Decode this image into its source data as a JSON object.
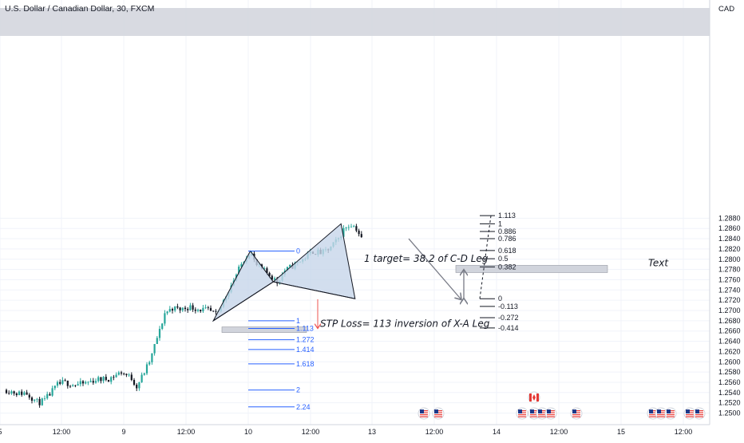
{
  "chart_data": {
    "type": "candlestick",
    "title": "U.S. Dollar / Canadian Dollar, 30, FXCM",
    "currency": "CAD",
    "ylim": [
      1.2495,
      1.2925
    ],
    "y_ticks": [
      "1.2880",
      "1.2860",
      "1.2840",
      "1.2820",
      "1.2800",
      "1.2780",
      "1.2760",
      "1.2740",
      "1.2720",
      "1.2700",
      "1.2680",
      "1.2660",
      "1.2640",
      "1.2620",
      "1.2600",
      "1.2580",
      "1.2560",
      "1.2540",
      "1.2520",
      "1.2500"
    ],
    "x_ticks": [
      "5",
      "12:00",
      "9",
      "12:00",
      "10",
      "12:00",
      "13",
      "12:00",
      "14",
      "12:00",
      "15",
      "12:00"
    ],
    "grid": true,
    "colors": {
      "bull": "#26a69a",
      "bear": "#131722",
      "fib_left": "#2962ff",
      "fib_right": "#131722",
      "pattern_fill": "#c7d6ea",
      "stop_arrow": "#ef5350",
      "band": "#d1d4dc"
    },
    "price_path": [
      [
        0,
        1.2545
      ],
      [
        1.0,
        1.2538
      ],
      [
        1.5,
        1.254
      ],
      [
        2.5,
        1.252
      ],
      [
        3.0,
        1.2525
      ],
      [
        4.0,
        1.2555
      ],
      [
        4.5,
        1.256
      ],
      [
        5.3,
        1.2555
      ],
      [
        6.0,
        1.2557
      ],
      [
        7.0,
        1.2565
      ],
      [
        8.0,
        1.2567
      ],
      [
        9.0,
        1.258
      ],
      [
        9.8,
        1.2568
      ],
      [
        10.2,
        1.2552
      ],
      [
        10.8,
        1.258
      ],
      [
        11.3,
        1.2605
      ],
      [
        11.7,
        1.264
      ],
      [
        12.0,
        1.266
      ],
      [
        12.4,
        1.2695
      ],
      [
        13.0,
        1.2705
      ],
      [
        13.6,
        1.2702
      ],
      [
        14.3,
        1.2707
      ],
      [
        15.0,
        1.2703
      ],
      [
        15.8,
        1.27
      ],
      [
        16.5,
        1.269
      ],
      [
        17.2,
        1.273
      ],
      [
        17.8,
        1.276
      ],
      [
        18.6,
        1.28
      ],
      [
        19.1,
        1.2816
      ],
      [
        19.5,
        1.279
      ],
      [
        20.0,
        1.278
      ],
      [
        20.6,
        1.277
      ],
      [
        21.2,
        1.2755
      ],
      [
        21.8,
        1.2778
      ],
      [
        22.5,
        1.2788
      ],
      [
        23.2,
        1.28
      ],
      [
        24.0,
        1.2815
      ],
      [
        24.7,
        1.2812
      ],
      [
        25.3,
        1.282
      ],
      [
        26.0,
        1.284
      ],
      [
        26.5,
        1.2862
      ],
      [
        27.0,
        1.2868
      ],
      [
        27.4,
        1.286
      ],
      [
        27.8,
        1.284
      ]
    ],
    "pattern": {
      "X": [
        16.2,
        1.268
      ],
      "A": [
        19.1,
        1.2816
      ],
      "B": [
        20.9,
        1.2756
      ],
      "C": [
        26.2,
        1.2869
      ],
      "D": [
        27.3,
        1.2723
      ]
    },
    "fib_left": {
      "levels": [
        {
          "label": "0",
          "value": 1.2816
        },
        {
          "label": "1",
          "value": 1.268
        },
        {
          "label": "1.113",
          "value": 1.2665
        },
        {
          "label": "1.272",
          "value": 1.2643
        },
        {
          "label": "1.414",
          "value": 1.2624
        },
        {
          "label": "1.618",
          "value": 1.2596
        },
        {
          "label": "2",
          "value": 1.2545
        },
        {
          "label": "2.24",
          "value": 1.2512
        }
      ]
    },
    "fib_right": {
      "levels": [
        {
          "label": "1.113",
          "value": 1.2885
        },
        {
          "label": "1",
          "value": 1.2869
        },
        {
          "label": "0.886",
          "value": 1.2854
        },
        {
          "label": "0.786",
          "value": 1.284
        },
        {
          "label": "0.618",
          "value": 1.2817
        },
        {
          "label": "0.5",
          "value": 1.2801
        },
        {
          "label": "0.382",
          "value": 1.2785
        },
        {
          "label": "0",
          "value": 1.2723
        },
        {
          "label": "-0.113",
          "value": 1.2708
        },
        {
          "label": "-0.272",
          "value": 1.2686
        },
        {
          "label": "-0.414",
          "value": 1.2666
        }
      ]
    },
    "annotations": {
      "target": "1 target= 38.2 of C-D Leg",
      "stop": "STP Loss= 113 inversion of X-A Leg",
      "text": "Text"
    }
  }
}
